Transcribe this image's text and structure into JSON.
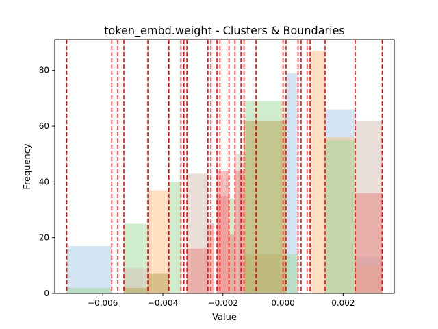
{
  "chart_data": {
    "type": "bar",
    "title": "token_embd.weight - Clusters & Boundaries",
    "xlabel": "Value",
    "ylabel": "Frequency",
    "xlim": [
      -0.0076,
      0.0037
    ],
    "ylim": [
      0,
      91
    ],
    "x_ticks": [
      -0.006,
      -0.004,
      -0.002,
      0.0,
      0.002
    ],
    "x_tick_labels": [
      "−0.006",
      "−0.004",
      "−0.002",
      "0.000",
      "0.002"
    ],
    "y_ticks": [
      0,
      20,
      40,
      60,
      80
    ],
    "y_tick_labels": [
      "0",
      "20",
      "40",
      "60",
      "80"
    ],
    "grid": false,
    "legend": "none",
    "bar_opacity": 0.5,
    "series": [
      {
        "color": "#a6c8e4",
        "bars": [
          {
            "x0": -0.0072,
            "x1": -0.0057,
            "value": 17
          },
          {
            "x0": -0.0013,
            "x1": 0.0001,
            "value": 14
          },
          {
            "x0": 0.0001,
            "x1": 0.0005,
            "value": 79
          },
          {
            "x0": 0.0014,
            "x1": 0.0024,
            "value": 66
          },
          {
            "x0": 0.0024,
            "x1": 0.0033,
            "value": 13
          }
        ]
      },
      {
        "color": "#ffbf86",
        "bars": [
          {
            "x0": -0.0045,
            "x1": -0.0038,
            "value": 37
          },
          {
            "x0": -0.0013,
            "x1": 0.0001,
            "value": 14
          },
          {
            "x0": 0.0009,
            "x1": 0.0014,
            "value": 87
          },
          {
            "x0": 0.0014,
            "x1": 0.0024,
            "value": 56
          },
          {
            "x0": 0.0024,
            "x1": 0.0033,
            "value": 10
          }
        ]
      },
      {
        "color": "#a0dc9c",
        "bars": [
          {
            "x0": -0.0072,
            "x1": -0.0057,
            "value": 2
          },
          {
            "x0": -0.0053,
            "x1": -0.0045,
            "value": 25
          },
          {
            "x0": -0.0038,
            "x1": -0.0034,
            "value": 40
          },
          {
            "x0": -0.0018,
            "x1": -0.0016,
            "value": 34
          },
          {
            "x0": -0.0013,
            "x1": 0.0001,
            "value": 69
          },
          {
            "x0": 0.0001,
            "x1": 0.0005,
            "value": 14
          },
          {
            "x0": 0.0014,
            "x1": 0.0024,
            "value": 55
          }
        ]
      },
      {
        "color": "#d8c0b6",
        "bars": [
          {
            "x0": -0.0053,
            "x1": -0.0045,
            "value": 9
          },
          {
            "x0": -0.0032,
            "x1": -0.0025,
            "value": 43
          },
          {
            "x0": -0.0016,
            "x1": -0.0013,
            "value": 50
          },
          {
            "x0": 0.0024,
            "x1": 0.0033,
            "value": 62
          }
        ]
      },
      {
        "color": "#e57f7c",
        "bars": [
          {
            "x0": -0.0032,
            "x1": -0.0025,
            "value": 16
          },
          {
            "x0": -0.0025,
            "x1": -0.0023,
            "value": 25
          },
          {
            "x0": -0.0022,
            "x1": -0.0018,
            "value": 44
          },
          {
            "x0": -0.0022,
            "x1": -0.0018,
            "value": 35
          },
          {
            "x0": -0.0018,
            "x1": -0.0016,
            "value": 21
          },
          {
            "x0": -0.0016,
            "x1": -0.0013,
            "value": 44
          },
          {
            "x0": 0.0024,
            "x1": 0.0033,
            "value": 36
          }
        ]
      },
      {
        "color": "#b8a050",
        "bars": [
          {
            "x0": -0.0053,
            "x1": -0.0045,
            "value": 2
          },
          {
            "x0": -0.0045,
            "x1": -0.0038,
            "value": 7
          },
          {
            "x0": -0.0013,
            "x1": 0.0001,
            "value": 62
          }
        ]
      }
    ],
    "boundaries": {
      "color": "#ff0000",
      "style": "dashed",
      "x": [
        -0.0072,
        -0.0057,
        -0.0055,
        -0.0053,
        -0.0045,
        -0.0038,
        -0.0034,
        -0.0033,
        -0.0032,
        -0.0025,
        -0.0024,
        -0.0022,
        -0.0021,
        -0.0018,
        -0.0016,
        -0.0014,
        -0.0013,
        -0.0009,
        0.0,
        0.0001,
        0.0005,
        0.0006,
        0.0008,
        0.0009,
        0.0014,
        0.0024,
        0.0033
      ]
    }
  }
}
